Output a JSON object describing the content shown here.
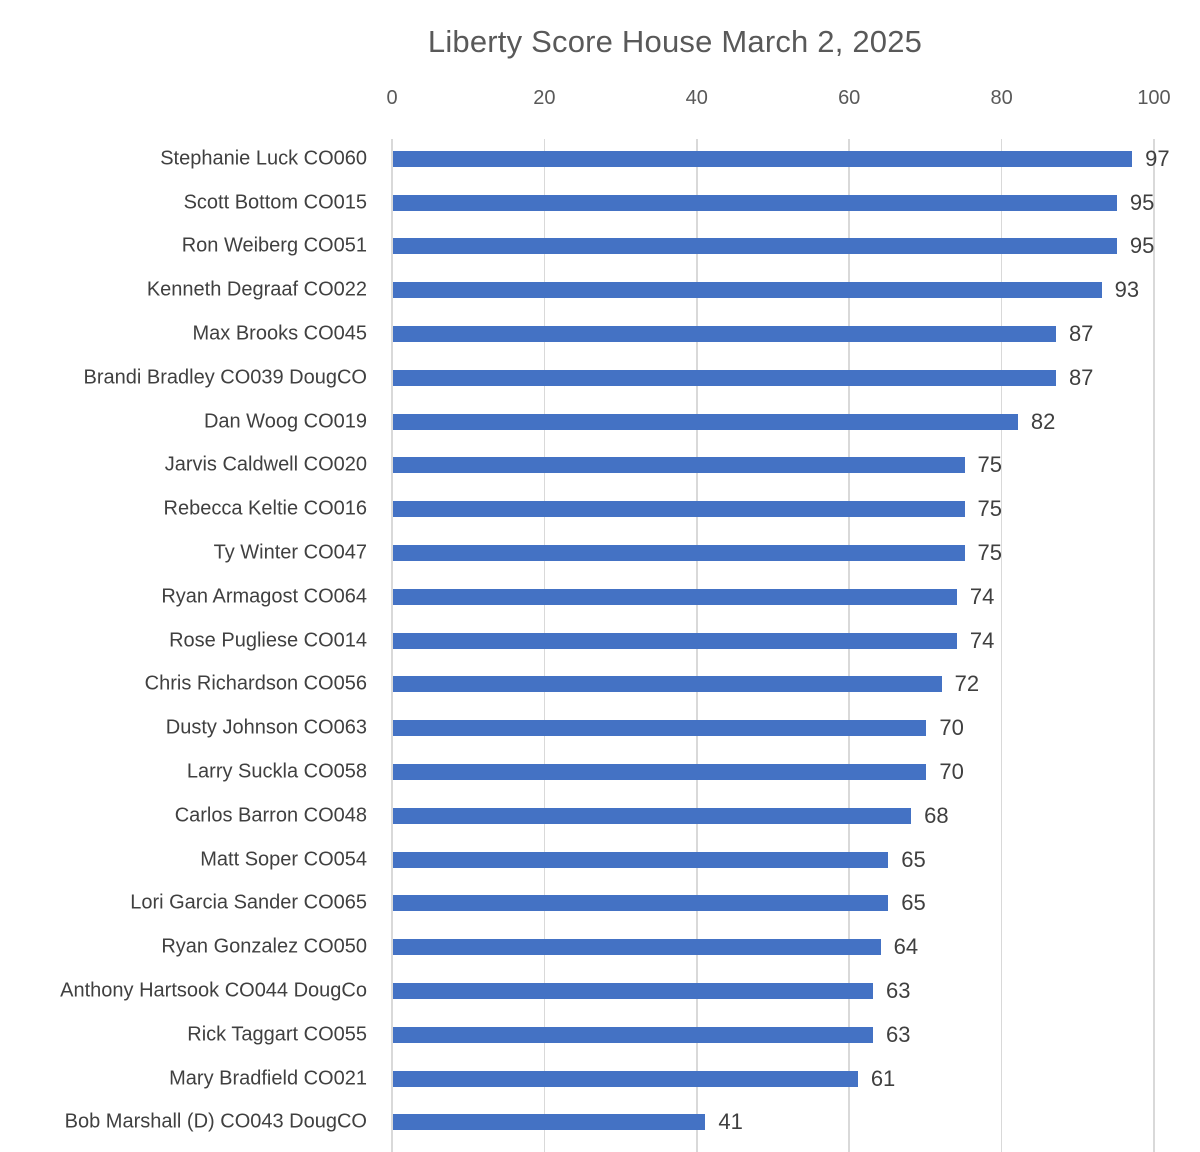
{
  "chart_data": {
    "type": "bar",
    "orientation": "horizontal",
    "title": "Liberty Score House March 2, 2025",
    "xlabel": "",
    "ylabel": "",
    "xlim": [
      0,
      100
    ],
    "x_ticks": [
      0,
      20,
      40,
      60,
      80,
      100
    ],
    "grid": true,
    "axis_position": "top",
    "legend": "none",
    "bar_color": "#4472C4",
    "gridline_color": "#D9D9D9",
    "title_color": "#595959",
    "tick_label_color": "#595959",
    "category_label_color": "#404040",
    "value_label_color": "#3F3F3F",
    "background_color": "#FFFFFF",
    "categories": [
      "Stephanie Luck CO060",
      "Scott Bottom CO015",
      "Ron Weiberg CO051",
      "Kenneth Degraaf CO022",
      "Max Brooks CO045",
      "Brandi Bradley CO039 DougCO",
      "Dan Woog CO019",
      "Jarvis Caldwell CO020",
      "Rebecca Keltie CO016",
      "Ty Winter CO047",
      "Ryan Armagost CO064",
      "Rose Pugliese CO014",
      "Chris Richardson CO056",
      "Dusty Johnson CO063",
      "Larry Suckla CO058",
      "Carlos Barron CO048",
      "Matt Soper CO054",
      "Lori Garcia Sander CO065",
      "Ryan Gonzalez CO050",
      "Anthony Hartsook CO044 DougCo",
      "Rick Taggart CO055",
      "Mary Bradfield CO021",
      "Bob Marshall (D) CO043 DougCO"
    ],
    "values": [
      97,
      95,
      95,
      93,
      87,
      87,
      82,
      75,
      75,
      75,
      74,
      74,
      72,
      70,
      70,
      68,
      65,
      65,
      64,
      63,
      63,
      61,
      41
    ]
  }
}
